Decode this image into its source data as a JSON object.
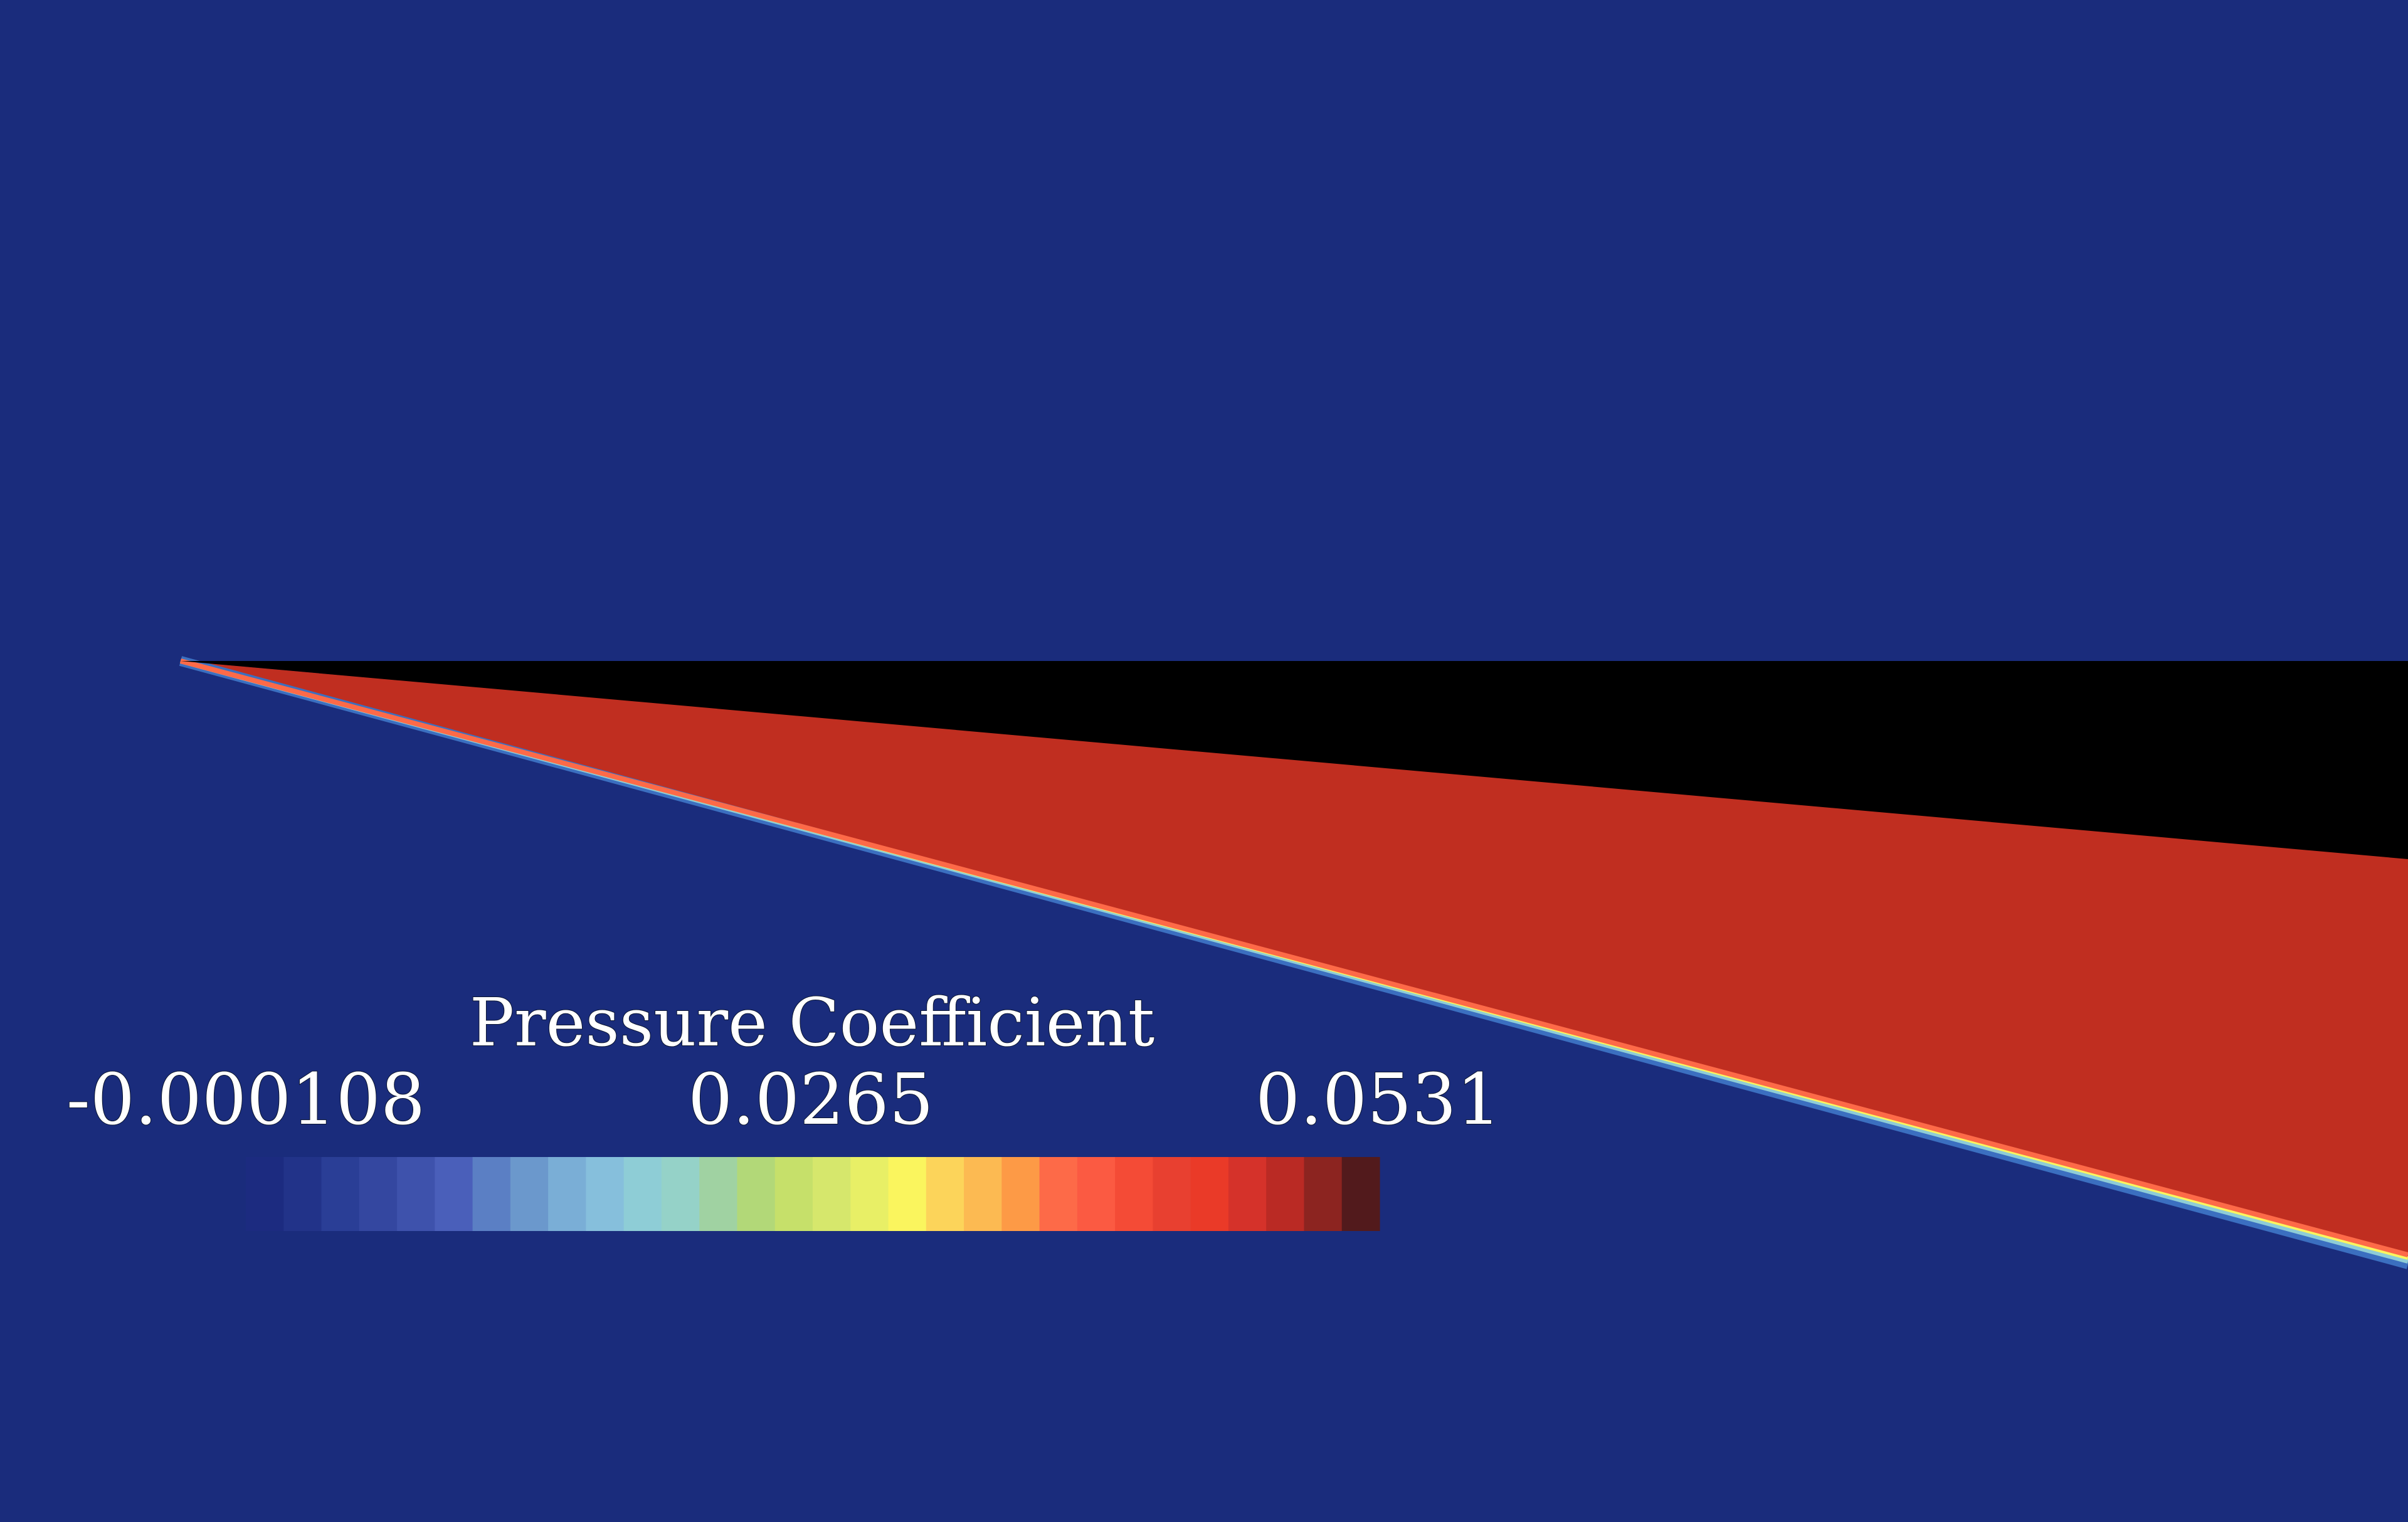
{
  "legend": {
    "title": "Pressure Coefficient",
    "min_label": "-0.000108",
    "mid_label": "0.0265",
    "max_label": "0.0531",
    "range": [
      -0.000108,
      0.0531
    ]
  },
  "colormap": [
    "#1c2b80",
    "#223389",
    "#2a3e96",
    "#3447a0",
    "#3e52ac",
    "#4a5fba",
    "#5b7fc4",
    "#6b98cc",
    "#7aaed6",
    "#86bfdc",
    "#8ecdd6",
    "#95d2c8",
    "#a0d2a2",
    "#b2d878",
    "#c6e06a",
    "#d6e76c",
    "#e8ef66",
    "#faf55e",
    "#fcd45a",
    "#fcba52",
    "#fd9a46",
    "#fd6a48",
    "#fb5a42",
    "#f44b36",
    "#e84030",
    "#ea3a28",
    "#d5322a",
    "#ba2a24",
    "#8c2420",
    "#521a1c"
  ],
  "colors": {
    "background": "#1a2c7c",
    "shock_region": "#c02e20",
    "body": "#000000"
  }
}
